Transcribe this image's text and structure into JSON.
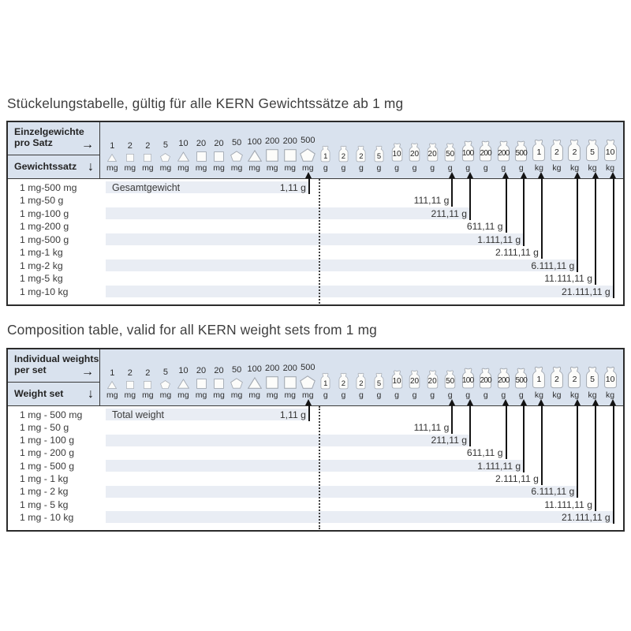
{
  "titles": {
    "de": "Stückelungstabelle, gültig für alle KERN Gewichtssätze ab 1 mg",
    "en": "Composition table, valid for all KERN weight sets from 1 mg"
  },
  "icons": {
    "arrow_right": "→",
    "arrow_down": "↓"
  },
  "columns": [
    {
      "nominal": "1",
      "unit": "mg",
      "shape": "triangle",
      "tier": 1
    },
    {
      "nominal": "2",
      "unit": "mg",
      "shape": "square",
      "tier": 1
    },
    {
      "nominal": "2",
      "unit": "mg",
      "shape": "square",
      "tier": 1
    },
    {
      "nominal": "5",
      "unit": "mg",
      "shape": "pentagon",
      "tier": 1
    },
    {
      "nominal": "10",
      "unit": "mg",
      "shape": "triangle",
      "tier": 2
    },
    {
      "nominal": "20",
      "unit": "mg",
      "shape": "square",
      "tier": 2
    },
    {
      "nominal": "20",
      "unit": "mg",
      "shape": "square",
      "tier": 2
    },
    {
      "nominal": "50",
      "unit": "mg",
      "shape": "pentagon",
      "tier": 2
    },
    {
      "nominal": "100",
      "unit": "mg",
      "shape": "triangle",
      "tier": 3
    },
    {
      "nominal": "200",
      "unit": "mg",
      "shape": "square",
      "tier": 3
    },
    {
      "nominal": "200",
      "unit": "mg",
      "shape": "square",
      "tier": 3
    },
    {
      "nominal": "500",
      "unit": "mg",
      "shape": "pentagon",
      "tier": 3
    },
    {
      "nominal": "1",
      "unit": "g",
      "shape": "weight",
      "tier": 1
    },
    {
      "nominal": "2",
      "unit": "g",
      "shape": "weight",
      "tier": 1
    },
    {
      "nominal": "2",
      "unit": "g",
      "shape": "weight",
      "tier": 1
    },
    {
      "nominal": "5",
      "unit": "g",
      "shape": "weight",
      "tier": 1
    },
    {
      "nominal": "10",
      "unit": "g",
      "shape": "weight",
      "tier": 2
    },
    {
      "nominal": "20",
      "unit": "g",
      "shape": "weight",
      "tier": 2
    },
    {
      "nominal": "20",
      "unit": "g",
      "shape": "weight",
      "tier": 2
    },
    {
      "nominal": "50",
      "unit": "g",
      "shape": "weight",
      "tier": 2
    },
    {
      "nominal": "100",
      "unit": "g",
      "shape": "weight",
      "tier": 3
    },
    {
      "nominal": "200",
      "unit": "g",
      "shape": "weight",
      "tier": 3
    },
    {
      "nominal": "200",
      "unit": "g",
      "shape": "weight",
      "tier": 3
    },
    {
      "nominal": "500",
      "unit": "g",
      "shape": "weight",
      "tier": 3
    },
    {
      "nominal": "1",
      "unit": "kg",
      "shape": "weight",
      "tier": 4
    },
    {
      "nominal": "2",
      "unit": "kg",
      "shape": "weight",
      "tier": 4
    },
    {
      "nominal": "2",
      "unit": "kg",
      "shape": "weight",
      "tier": 4
    },
    {
      "nominal": "5",
      "unit": "kg",
      "shape": "weight",
      "tier": 4
    },
    {
      "nominal": "10",
      "unit": "kg",
      "shape": "weight",
      "tier": 4
    }
  ],
  "separator_after_column": 11,
  "tables": {
    "de": {
      "header_weights_label_lines": [
        "Einzelgewichte",
        "pro Satz"
      ],
      "header_sets_label": "Gewichtssatz",
      "total_weight_label": "Gesamtgewicht",
      "rows": [
        {
          "set": "1 mg-500 mg",
          "total": "1,11 g",
          "arrow_col": 11,
          "striped": true
        },
        {
          "set": "1 mg-50 g",
          "total": "111,11 g",
          "arrow_col": 19,
          "striped": false
        },
        {
          "set": "1 mg-100 g",
          "total": "211,11 g",
          "arrow_col": 20,
          "striped": true
        },
        {
          "set": "1 mg-200 g",
          "total": "611,11 g",
          "arrow_col": 22,
          "striped": false
        },
        {
          "set": "1 mg-500 g",
          "total": "1.111,11 g",
          "arrow_col": 23,
          "striped": true
        },
        {
          "set": "1 mg-1 kg",
          "total": "2.111,11 g",
          "arrow_col": 24,
          "striped": false
        },
        {
          "set": "1 mg-2 kg",
          "total": "6.111,11 g",
          "arrow_col": 26,
          "striped": true
        },
        {
          "set": "1 mg-5 kg",
          "total": "11.111,11 g",
          "arrow_col": 27,
          "striped": false
        },
        {
          "set": "1 mg-10 kg",
          "total": "21.111,11 g",
          "arrow_col": 28,
          "striped": true
        }
      ]
    },
    "en": {
      "header_weights_label_lines": [
        "Individual weights",
        "per set"
      ],
      "header_sets_label": "Weight set",
      "total_weight_label": "Total weight",
      "rows": [
        {
          "set": "1 mg - 500 mg",
          "total": "1,11 g",
          "arrow_col": 11,
          "striped": true
        },
        {
          "set": "1 mg - 50 g",
          "total": "111,11 g",
          "arrow_col": 19,
          "striped": false
        },
        {
          "set": "1 mg - 100 g",
          "total": "211,11 g",
          "arrow_col": 20,
          "striped": true
        },
        {
          "set": "1 mg - 200 g",
          "total": "611,11 g",
          "arrow_col": 22,
          "striped": false
        },
        {
          "set": "1 mg - 500 g",
          "total": "1.111,11 g",
          "arrow_col": 23,
          "striped": true
        },
        {
          "set": "1 mg - 1 kg",
          "total": "2.111,11 g",
          "arrow_col": 24,
          "striped": false
        },
        {
          "set": "1 mg - 2 kg",
          "total": "6.111,11 g",
          "arrow_col": 26,
          "striped": true
        },
        {
          "set": "1 mg - 5 kg",
          "total": "11.111,11 g",
          "arrow_col": 27,
          "striped": false
        },
        {
          "set": "1 mg - 10 kg",
          "total": "21.111,11 g",
          "arrow_col": 28,
          "striped": true
        }
      ]
    }
  },
  "colors": {
    "header_bg": "#d9e2ee",
    "row_stripe": "#e9edf4",
    "table_border": "#2b2b2b",
    "grid_line": "#3a3a3a",
    "text": "#333333",
    "arrow": "#141414",
    "icon_fill": "#fcfcfa",
    "icon_stroke": "#a3a9b2"
  }
}
